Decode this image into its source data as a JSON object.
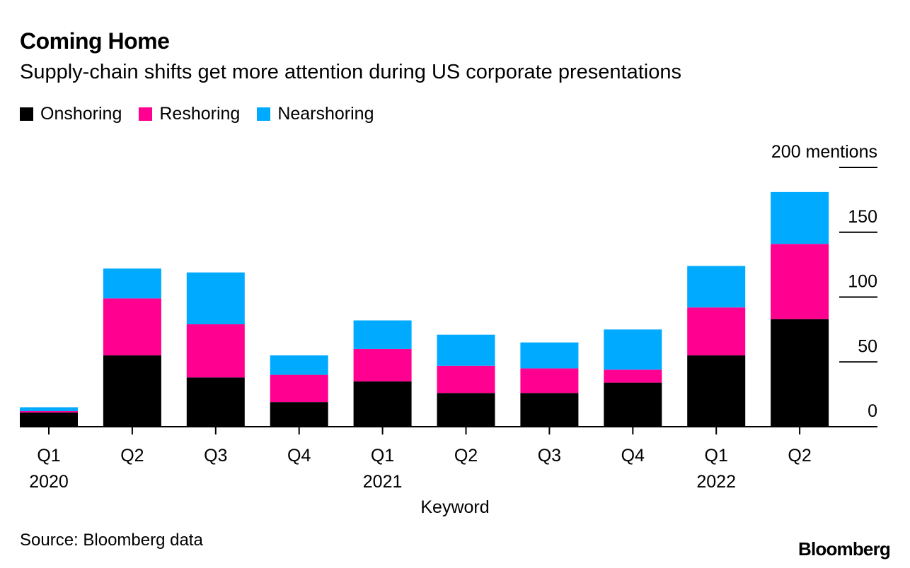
{
  "header": {
    "title": "Coming Home",
    "subtitle": "Supply-chain shifts get more attention during US corporate presentations"
  },
  "footer": {
    "source": "Source: Bloomberg data",
    "brand": "Bloomberg"
  },
  "colors": {
    "onshoring": "#000000",
    "reshoring": "#ff0090",
    "nearshoring": "#00aaff"
  },
  "chart_data": {
    "type": "bar",
    "stacked": true,
    "title": "Coming Home",
    "subtitle": "Supply-chain shifts get more attention during US corporate presentations",
    "xlabel": "Keyword",
    "ylabel": "",
    "y_unit_label": "200 mentions",
    "ylim": [
      0,
      200
    ],
    "yticks": [
      0,
      50,
      100,
      150,
      200
    ],
    "ytick_labels": [
      "0",
      "50",
      "100",
      "150",
      "200 mentions"
    ],
    "y_axis_side": "right",
    "grid": true,
    "legend_position": "top-left",
    "categories": [
      "Q1 2020",
      "Q2 2020",
      "Q3 2020",
      "Q4 2020",
      "Q1 2021",
      "Q2 2021",
      "Q3 2021",
      "Q4 2021",
      "Q1 2022",
      "Q2 2022"
    ],
    "tick_labels": [
      {
        "quarter": "Q1",
        "year": "2020"
      },
      {
        "quarter": "Q2",
        "year": ""
      },
      {
        "quarter": "Q3",
        "year": ""
      },
      {
        "quarter": "Q4",
        "year": ""
      },
      {
        "quarter": "Q1",
        "year": "2021"
      },
      {
        "quarter": "Q2",
        "year": ""
      },
      {
        "quarter": "Q3",
        "year": ""
      },
      {
        "quarter": "Q4",
        "year": ""
      },
      {
        "quarter": "Q1",
        "year": "2022"
      },
      {
        "quarter": "Q2",
        "year": ""
      }
    ],
    "series": [
      {
        "name": "Onshoring",
        "color": "#000000",
        "values": [
          11,
          55,
          38,
          19,
          35,
          26,
          26,
          34,
          55,
          83
        ]
      },
      {
        "name": "Reshoring",
        "color": "#ff0090",
        "values": [
          1,
          44,
          41,
          21,
          25,
          21,
          19,
          10,
          37,
          58
        ]
      },
      {
        "name": "Nearshoring",
        "color": "#00aaff",
        "values": [
          3,
          23,
          40,
          15,
          22,
          24,
          20,
          31,
          32,
          40
        ]
      }
    ],
    "source": "Source: Bloomberg data"
  }
}
